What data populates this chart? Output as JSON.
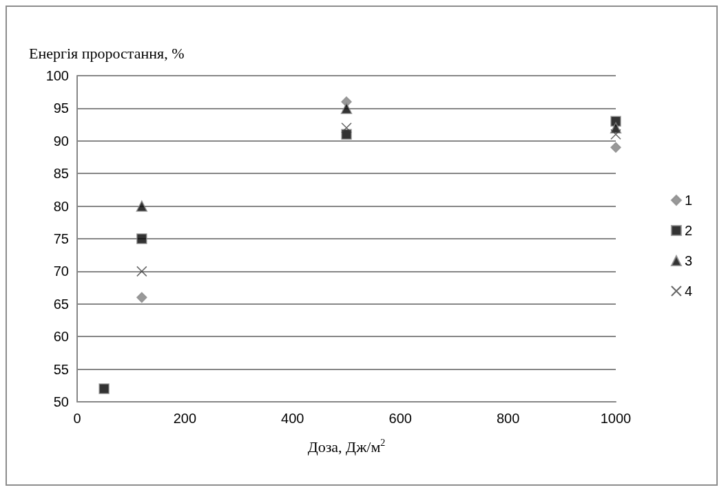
{
  "chart_data": {
    "type": "scatter",
    "ylabel": "Енергія проростання, %",
    "xlabel": "Доза, Дж/м$^{2}$",
    "xlim": [
      0,
      1000
    ],
    "xticks": [
      0,
      200,
      400,
      600,
      800,
      1000
    ],
    "ylim": [
      50,
      100
    ],
    "yticks": [
      50,
      55,
      60,
      65,
      70,
      75,
      80,
      85,
      90,
      95,
      100
    ],
    "grid": "y",
    "legend": "right",
    "series": [
      {
        "name": "1",
        "color": "#7f7f7f",
        "marker": "diamond",
        "x": [
          120,
          500,
          1000
        ],
        "values": [
          66,
          96,
          89
        ]
      },
      {
        "name": "2",
        "color": "#000000",
        "marker": "square",
        "x": [
          50,
          120,
          500,
          1000
        ],
        "values": [
          52,
          75,
          91,
          93
        ]
      },
      {
        "name": "3",
        "color": "#000000",
        "marker": "triangle",
        "x": [
          120,
          500,
          1000
        ],
        "values": [
          80,
          95,
          92
        ]
      },
      {
        "name": "4",
        "color": "#404040",
        "marker": "cross",
        "x": [
          120,
          500,
          1000
        ],
        "values": [
          70,
          92,
          91
        ]
      }
    ]
  }
}
